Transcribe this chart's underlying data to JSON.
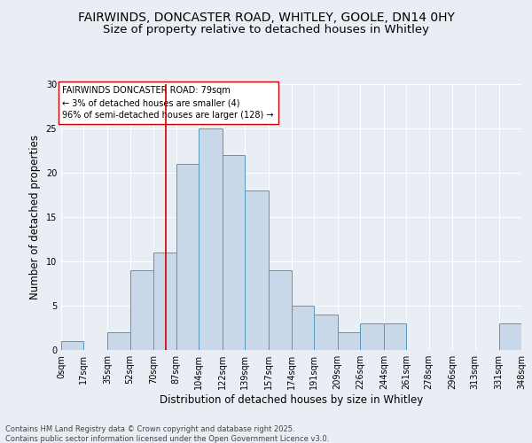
{
  "title_line1": "FAIRWINDS, DONCASTER ROAD, WHITLEY, GOOLE, DN14 0HY",
  "title_line2": "Size of property relative to detached houses in Whitley",
  "xlabel": "Distribution of detached houses by size in Whitley",
  "ylabel": "Number of detached properties",
  "footer_line1": "Contains HM Land Registry data © Crown copyright and database right 2025.",
  "footer_line2": "Contains public sector information licensed under the Open Government Licence v3.0.",
  "annotation_line1": "FAIRWINDS DONCASTER ROAD: 79sqm",
  "annotation_line2": "← 3% of detached houses are smaller (4)",
  "annotation_line3": "96% of semi-detached houses are larger (128) →",
  "bar_color": "#c8d8e8",
  "bar_edge_color": "#5599bb",
  "vline_color": "#cc0000",
  "vline_x": 79,
  "bin_edges": [
    0,
    17,
    35,
    52,
    70,
    87,
    104,
    122,
    139,
    157,
    174,
    191,
    209,
    226,
    244,
    261,
    278,
    296,
    313,
    331,
    348
  ],
  "bar_heights": [
    1,
    0,
    2,
    9,
    11,
    21,
    25,
    22,
    18,
    9,
    5,
    4,
    2,
    3,
    3,
    0,
    0,
    0,
    0,
    3
  ],
  "ylim": [
    0,
    30
  ],
  "yticks": [
    0,
    5,
    10,
    15,
    20,
    25,
    30
  ],
  "background_color": "#e8eef4",
  "plot_bg_color": "#e8eef4",
  "grid_color": "#ffffff",
  "title_fontsize": 10,
  "subtitle_fontsize": 9.5,
  "axis_label_fontsize": 8.5,
  "tick_fontsize": 7,
  "annotation_fontsize": 7,
  "footer_fontsize": 6
}
